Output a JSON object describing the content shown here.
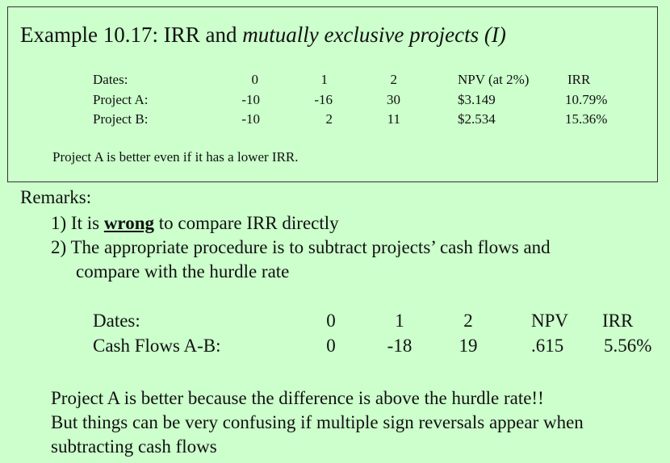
{
  "slide": {
    "title_prefix": "Example 10.17:  IRR and ",
    "title_italic": "mutually exclusive projects (I)",
    "table1": {
      "headers": [
        "Dates:",
        "0",
        "1",
        "2",
        "NPV (at 2%)",
        "IRR"
      ],
      "rows": [
        [
          "Project A:",
          "-10",
          "-16",
          "30",
          "$3.149",
          "10.79%"
        ],
        [
          "Project B:",
          "-10",
          "2",
          "11",
          "$2.534",
          "15.36%"
        ]
      ]
    },
    "note": "Project A is better even if it has a lower IRR.",
    "remarks_label": "Remarks:",
    "remark1_pre": "1) It is ",
    "remark1_bold": "wrong",
    "remark1_post": " to compare IRR directly",
    "remark2_line1": "2) The appropriate procedure is to subtract projects’ cash flows and",
    "remark2_line2": "compare with the hurdle rate",
    "table2": {
      "headers": [
        "Dates:",
        "0",
        "1",
        "2",
        "NPV",
        "IRR"
      ],
      "row": [
        "Cash Flows A-B:",
        "0",
        "-18",
        "19",
        ".615",
        "5.56%"
      ]
    },
    "conclusion_line1": "Project A is better because the difference is above the hurdle rate!!",
    "conclusion_line2": "But things can be very confusing if multiple sign reversals appear when",
    "conclusion_line3": "subtracting cash flows"
  }
}
